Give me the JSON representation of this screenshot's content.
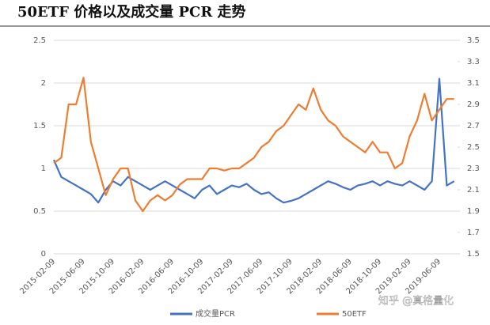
{
  "chart_data": {
    "type": "line",
    "title": "50ETF 价格以及成交量 PCR 走势",
    "watermark": "知乎 @真格量化",
    "categories": [
      "2015-02-09",
      null,
      null,
      null,
      "2015-06-09",
      null,
      null,
      null,
      "2015-10-09",
      null,
      null,
      null,
      "2016-02-09",
      null,
      null,
      null,
      "2016-06-09",
      null,
      null,
      null,
      "2016-10-09",
      null,
      null,
      null,
      "2017-02-09",
      null,
      null,
      null,
      "2017-06-09",
      null,
      null,
      null,
      "2017-10-09",
      null,
      null,
      null,
      "2018-02-09",
      null,
      null,
      null,
      "2018-06-09",
      null,
      null,
      null,
      "2018-10-09",
      null,
      null,
      null,
      "2019-02-09",
      null,
      null,
      null,
      "2019-06-09",
      null,
      null
    ],
    "series": [
      {
        "name": "成交量PCR",
        "color": "#4472c4",
        "values": [
          1.1,
          0.9,
          0.85,
          0.8,
          0.75,
          0.7,
          0.6,
          0.75,
          0.85,
          0.8,
          0.9,
          0.85,
          0.8,
          0.75,
          0.8,
          0.85,
          0.8,
          0.75,
          0.7,
          0.65,
          0.75,
          0.8,
          0.7,
          0.75,
          0.8,
          0.78,
          0.82,
          0.75,
          0.7,
          0.72,
          0.65,
          0.6,
          0.62,
          0.65,
          0.7,
          0.75,
          0.8,
          0.85,
          0.82,
          0.78,
          0.75,
          0.8,
          0.82,
          0.85,
          0.8,
          0.85,
          0.82,
          0.8,
          0.85,
          0.8,
          0.75,
          0.85,
          2.05,
          0.8,
          0.85
        ]
      },
      {
        "name": "50ETF",
        "color": "#ed7d31",
        "axis": "y2",
        "values": [
          2.35,
          2.4,
          2.9,
          2.9,
          3.15,
          2.55,
          2.3,
          2.05,
          2.2,
          2.3,
          2.3,
          2.0,
          1.9,
          2.0,
          2.05,
          2.0,
          2.05,
          2.15,
          2.2,
          2.2,
          2.2,
          2.3,
          2.3,
          2.28,
          2.3,
          2.3,
          2.35,
          2.4,
          2.5,
          2.55,
          2.65,
          2.7,
          2.8,
          2.9,
          2.85,
          3.05,
          2.85,
          2.75,
          2.7,
          2.6,
          2.55,
          2.5,
          2.45,
          2.55,
          2.45,
          2.45,
          2.3,
          2.35,
          2.6,
          2.75,
          3.0,
          2.75,
          2.85,
          2.95,
          2.95
        ]
      }
    ],
    "ylim": [
      0,
      2.5
    ],
    "yticks": [
      0,
      0.5,
      1,
      1.5,
      2,
      2.5
    ],
    "y2lim": [
      1.5,
      3.5
    ],
    "y2ticks": [
      1.5,
      1.7,
      1.9,
      2.1,
      2.3,
      2.5,
      2.7,
      2.9,
      3.1,
      3.3,
      3.5
    ],
    "grid": true,
    "legend": "bottom"
  }
}
